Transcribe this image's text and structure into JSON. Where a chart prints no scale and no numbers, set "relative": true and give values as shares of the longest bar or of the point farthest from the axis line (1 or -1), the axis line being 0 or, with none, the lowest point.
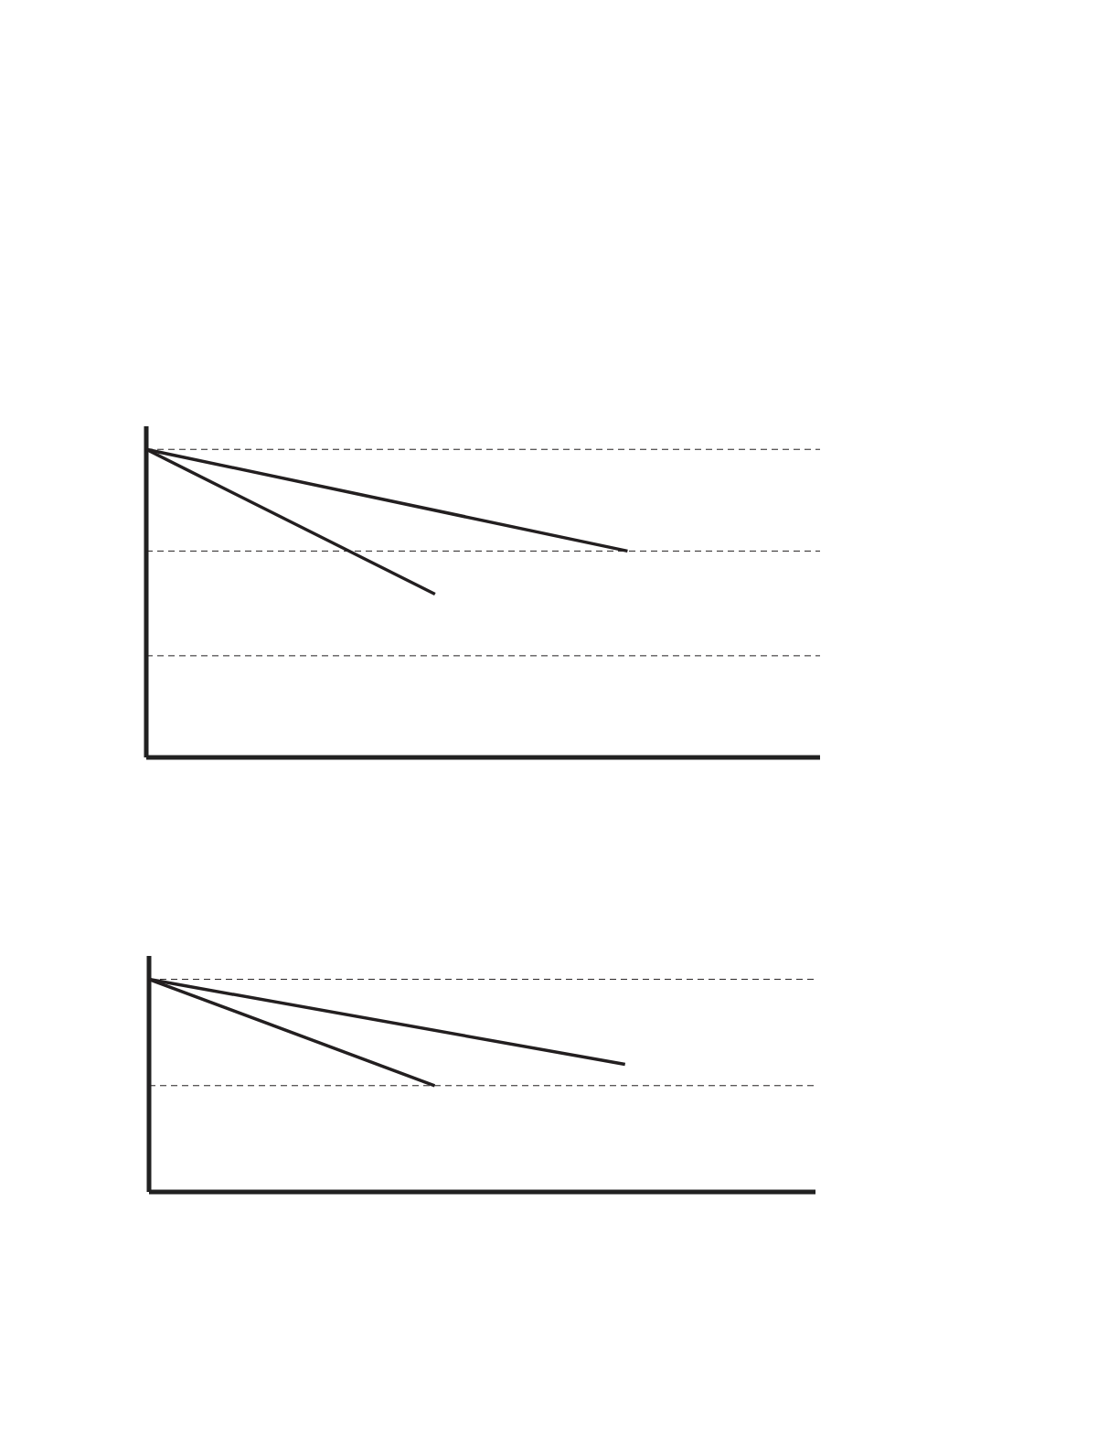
{
  "chart_data": [
    {
      "type": "line",
      "relative": true,
      "categories": [
        null,
        null,
        null,
        null,
        null,
        null,
        null,
        null
      ],
      "line_style": "solid",
      "series": [
        {
          "color": "#231f20",
          "values": [
            1,
            null,
            null,
            0.53,
            null,
            null,
            null,
            null
          ]
        },
        {
          "color": "#231f20",
          "values": [
            1,
            null,
            null,
            null,
            null,
            0.67,
            null,
            null
          ]
        }
      ],
      "ref_lines": [
        {
          "axis": "y",
          "value": 1,
          "line_style": "dashed",
          "color": "#231f20"
        },
        {
          "axis": "y",
          "value": 0.67,
          "line_style": "dashed",
          "color": "#231f20"
        },
        {
          "axis": "y",
          "value": 0.33,
          "line_style": "dashed",
          "color": "#231f20"
        }
      ]
    },
    {
      "type": "line",
      "relative": true,
      "categories": [
        null,
        null,
        null,
        null,
        null,
        null,
        null,
        null
      ],
      "line_style": "solid",
      "series": [
        {
          "color": "#231f20",
          "values": [
            1,
            null,
            null,
            0.5,
            null,
            null,
            null,
            null
          ]
        },
        {
          "color": "#231f20",
          "values": [
            1,
            null,
            null,
            null,
            null,
            0.6,
            null,
            null
          ]
        }
      ],
      "ref_lines": [
        {
          "axis": "y",
          "value": 1,
          "line_style": "dashed",
          "color": "#231f20"
        },
        {
          "axis": "y",
          "value": 0.5,
          "line_style": "dashed",
          "color": "#231f20"
        }
      ]
    }
  ]
}
